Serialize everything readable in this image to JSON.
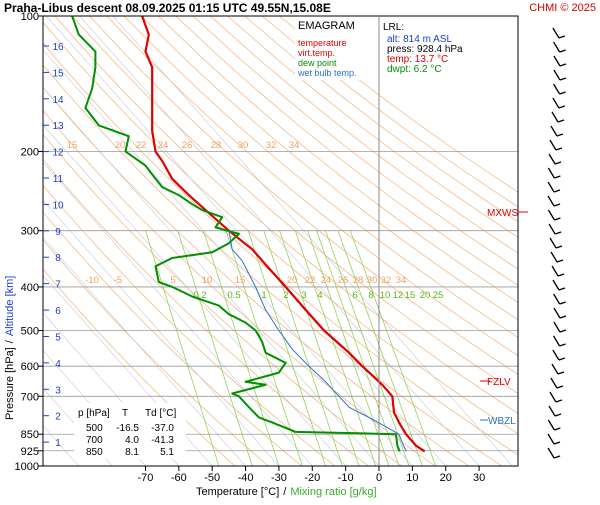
{
  "header": {
    "title": "Praha-Libus   descent   08.09.2025 01:15 UTC  49.55N,15.08E",
    "copyright": "CHMI © 2025"
  },
  "legend": {
    "title": "EMAGRAM",
    "items": [
      {
        "label": "temperature",
        "color": "#e00000"
      },
      {
        "label": "virt.temp.",
        "color": "#e00000"
      },
      {
        "label": "dew point",
        "color": "#009000"
      },
      {
        "label": "wet bulb temp.",
        "color": "#2a6fd6"
      }
    ]
  },
  "lrl_box": {
    "title": "LRL:",
    "lines": [
      {
        "text": "alt: 814 m ASL",
        "color": "#1a3fd0"
      },
      {
        "text": "press: 928.4 hPa",
        "color": "#000000"
      },
      {
        "text": "temp: 13.7 °C",
        "color": "#e00000"
      },
      {
        "text": "dwpt: 6.2 °C",
        "color": "#009000"
      }
    ]
  },
  "levels_table": {
    "headers": [
      "p [hPa]",
      "T",
      "Td [°C]"
    ],
    "rows": [
      [
        "500",
        "-16.5",
        "-37.0"
      ],
      [
        "700",
        "4.0",
        "-41.3"
      ],
      [
        "850",
        "8.1",
        "5.1"
      ]
    ]
  },
  "axes": {
    "ylabel_pressure": "Pressure [hPa]",
    "ylabel_separator": "/",
    "ylabel_altitude": "Altitude [km]",
    "xlabel_temp": "Temperature [°C]",
    "xlabel_separator": "/",
    "xlabel_mixing": "Mixing ratio [g/kg]"
  },
  "level_markers": [
    {
      "label": "MXWS",
      "color": "#e00000"
    },
    {
      "label": "FZLV",
      "color": "#e00000"
    },
    {
      "label": "WBZL",
      "color": "#2a6fd6"
    }
  ],
  "chart_data": {
    "type": "line",
    "x_axis": {
      "label": "Temperature [°C]",
      "range": [
        -80,
        40
      ],
      "ticks": [
        -70,
        -60,
        -50,
        -40,
        -30,
        -20,
        -10,
        0,
        10,
        20,
        30
      ]
    },
    "y_axis": {
      "label": "Pressure [hPa]",
      "scale": "log",
      "range": [
        1000,
        100
      ],
      "ticks": [
        100,
        200,
        300,
        400,
        500,
        600,
        700,
        850,
        925,
        1000
      ]
    },
    "altitude_ticks_km": [
      1,
      2,
      3,
      4,
      5,
      6,
      7,
      8,
      9,
      10,
      11,
      12,
      13,
      14,
      15,
      16
    ],
    "mixing_ratio_labels": [
      "0.2",
      "0.5",
      "1",
      "2",
      "3",
      "4",
      "6",
      "8",
      "10",
      "12",
      "15",
      "20",
      "25"
    ],
    "dry_adiabat_labels_lower": [
      "-10",
      "-5",
      "5",
      "10",
      "15",
      "20",
      "22",
      "24",
      "26",
      "28",
      "30",
      "32",
      "34"
    ],
    "dry_adiabat_labels_upper": [
      "15",
      "20",
      "22",
      "24",
      "26",
      "28",
      "30",
      "32",
      "34"
    ],
    "series": [
      {
        "name": "temperature",
        "color": "#e00000",
        "points": [
          [
            13.7,
            928
          ],
          [
            11,
            900
          ],
          [
            8.1,
            850
          ],
          [
            6,
            800
          ],
          [
            4.5,
            760
          ],
          [
            4.0,
            700
          ],
          [
            1,
            660
          ],
          [
            -5,
            600
          ],
          [
            -9,
            560
          ],
          [
            -16.5,
            500
          ],
          [
            -22,
            450
          ],
          [
            -28,
            400
          ],
          [
            -35,
            350
          ],
          [
            -38,
            330
          ],
          [
            -45,
            300
          ],
          [
            -52,
            270
          ],
          [
            -57,
            250
          ],
          [
            -62,
            230
          ],
          [
            -65,
            210
          ],
          [
            -67,
            200
          ],
          [
            -68,
            180
          ],
          [
            -68,
            160
          ],
          [
            -68,
            140
          ],
          [
            -68,
            130
          ],
          [
            -70,
            120
          ],
          [
            -69,
            110
          ],
          [
            -71,
            100
          ]
        ]
      },
      {
        "name": "dew point",
        "color": "#009000",
        "points": [
          [
            6.2,
            928
          ],
          [
            5.5,
            900
          ],
          [
            5.1,
            850
          ],
          [
            -8,
            845
          ],
          [
            -25,
            840
          ],
          [
            -32,
            800
          ],
          [
            -36,
            780
          ],
          [
            -39,
            740
          ],
          [
            -42,
            700
          ],
          [
            -44,
            690
          ],
          [
            -34,
            660
          ],
          [
            -40,
            650
          ],
          [
            -30,
            620
          ],
          [
            -28,
            590
          ],
          [
            -34,
            560
          ],
          [
            -35,
            530
          ],
          [
            -37,
            500
          ],
          [
            -40,
            480
          ],
          [
            -45,
            460
          ],
          [
            -48,
            440
          ],
          [
            -52,
            430
          ],
          [
            -56,
            420
          ],
          [
            -62,
            400
          ],
          [
            -66,
            390
          ],
          [
            -67,
            360
          ],
          [
            -62,
            345
          ],
          [
            -50,
            335
          ],
          [
            -45,
            320
          ],
          [
            -42,
            305
          ],
          [
            -49,
            295
          ],
          [
            -47,
            280
          ],
          [
            -53,
            270
          ],
          [
            -56,
            262
          ],
          [
            -60,
            250
          ],
          [
            -65,
            240
          ],
          [
            -68,
            225
          ],
          [
            -70,
            215
          ],
          [
            -76,
            200
          ],
          [
            -75,
            185
          ],
          [
            -84,
            175
          ],
          [
            -88,
            160
          ],
          [
            -86,
            145
          ],
          [
            -85,
            130
          ],
          [
            -85,
            120
          ],
          [
            -90,
            110
          ],
          [
            -92,
            100
          ]
        ]
      },
      {
        "name": "wet bulb temp.",
        "color": "#2a6fd6",
        "points": [
          [
            8.2,
            928
          ],
          [
            7.3,
            900
          ],
          [
            6,
            850
          ],
          [
            1,
            810
          ],
          [
            -3,
            780
          ],
          [
            -6,
            760
          ],
          [
            -9,
            740
          ],
          [
            -12,
            700
          ],
          [
            -16,
            650
          ],
          [
            -21,
            600
          ],
          [
            -26,
            550
          ],
          [
            -30,
            500
          ],
          [
            -34,
            450
          ],
          [
            -37,
            400
          ],
          [
            -41,
            350
          ],
          [
            -44,
            330
          ],
          [
            -45,
            300
          ]
        ]
      }
    ],
    "wind_barbs_pressure_hpa": [
      925,
      850,
      700,
      600,
      500,
      400,
      300,
      250,
      200,
      150,
      100
    ]
  }
}
